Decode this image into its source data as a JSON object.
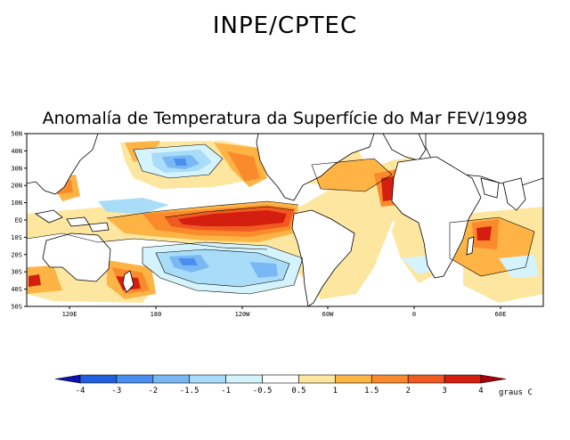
{
  "header": {
    "organization": "INPE/CPTEC"
  },
  "map": {
    "title": "Anomalía de Temperatura da Superfície do Mar FEV/1998",
    "lat_labels": [
      "50N",
      "40N",
      "30N",
      "20N",
      "10N",
      "EQ",
      "10S",
      "20S",
      "30S",
      "40S",
      "50S"
    ],
    "lon_labels": [
      "120E",
      "180",
      "120W",
      "60W",
      "0",
      "60E"
    ]
  },
  "colorbar": {
    "labels": [
      "-4",
      "-3",
      "-2",
      "-1.5",
      "-1",
      "-0.5",
      "0.5",
      "1",
      "1.5",
      "2",
      "3",
      "4"
    ],
    "colors": [
      "#1010b0",
      "#2060e0",
      "#4a8ff0",
      "#7ab8f5",
      "#a8dcf8",
      "#d4f3fc",
      "#ffffff",
      "#fde6a0",
      "#fdb444",
      "#fb8a2c",
      "#f05a20",
      "#d41e10",
      "#a8000a"
    ],
    "unit": "graus C"
  }
}
